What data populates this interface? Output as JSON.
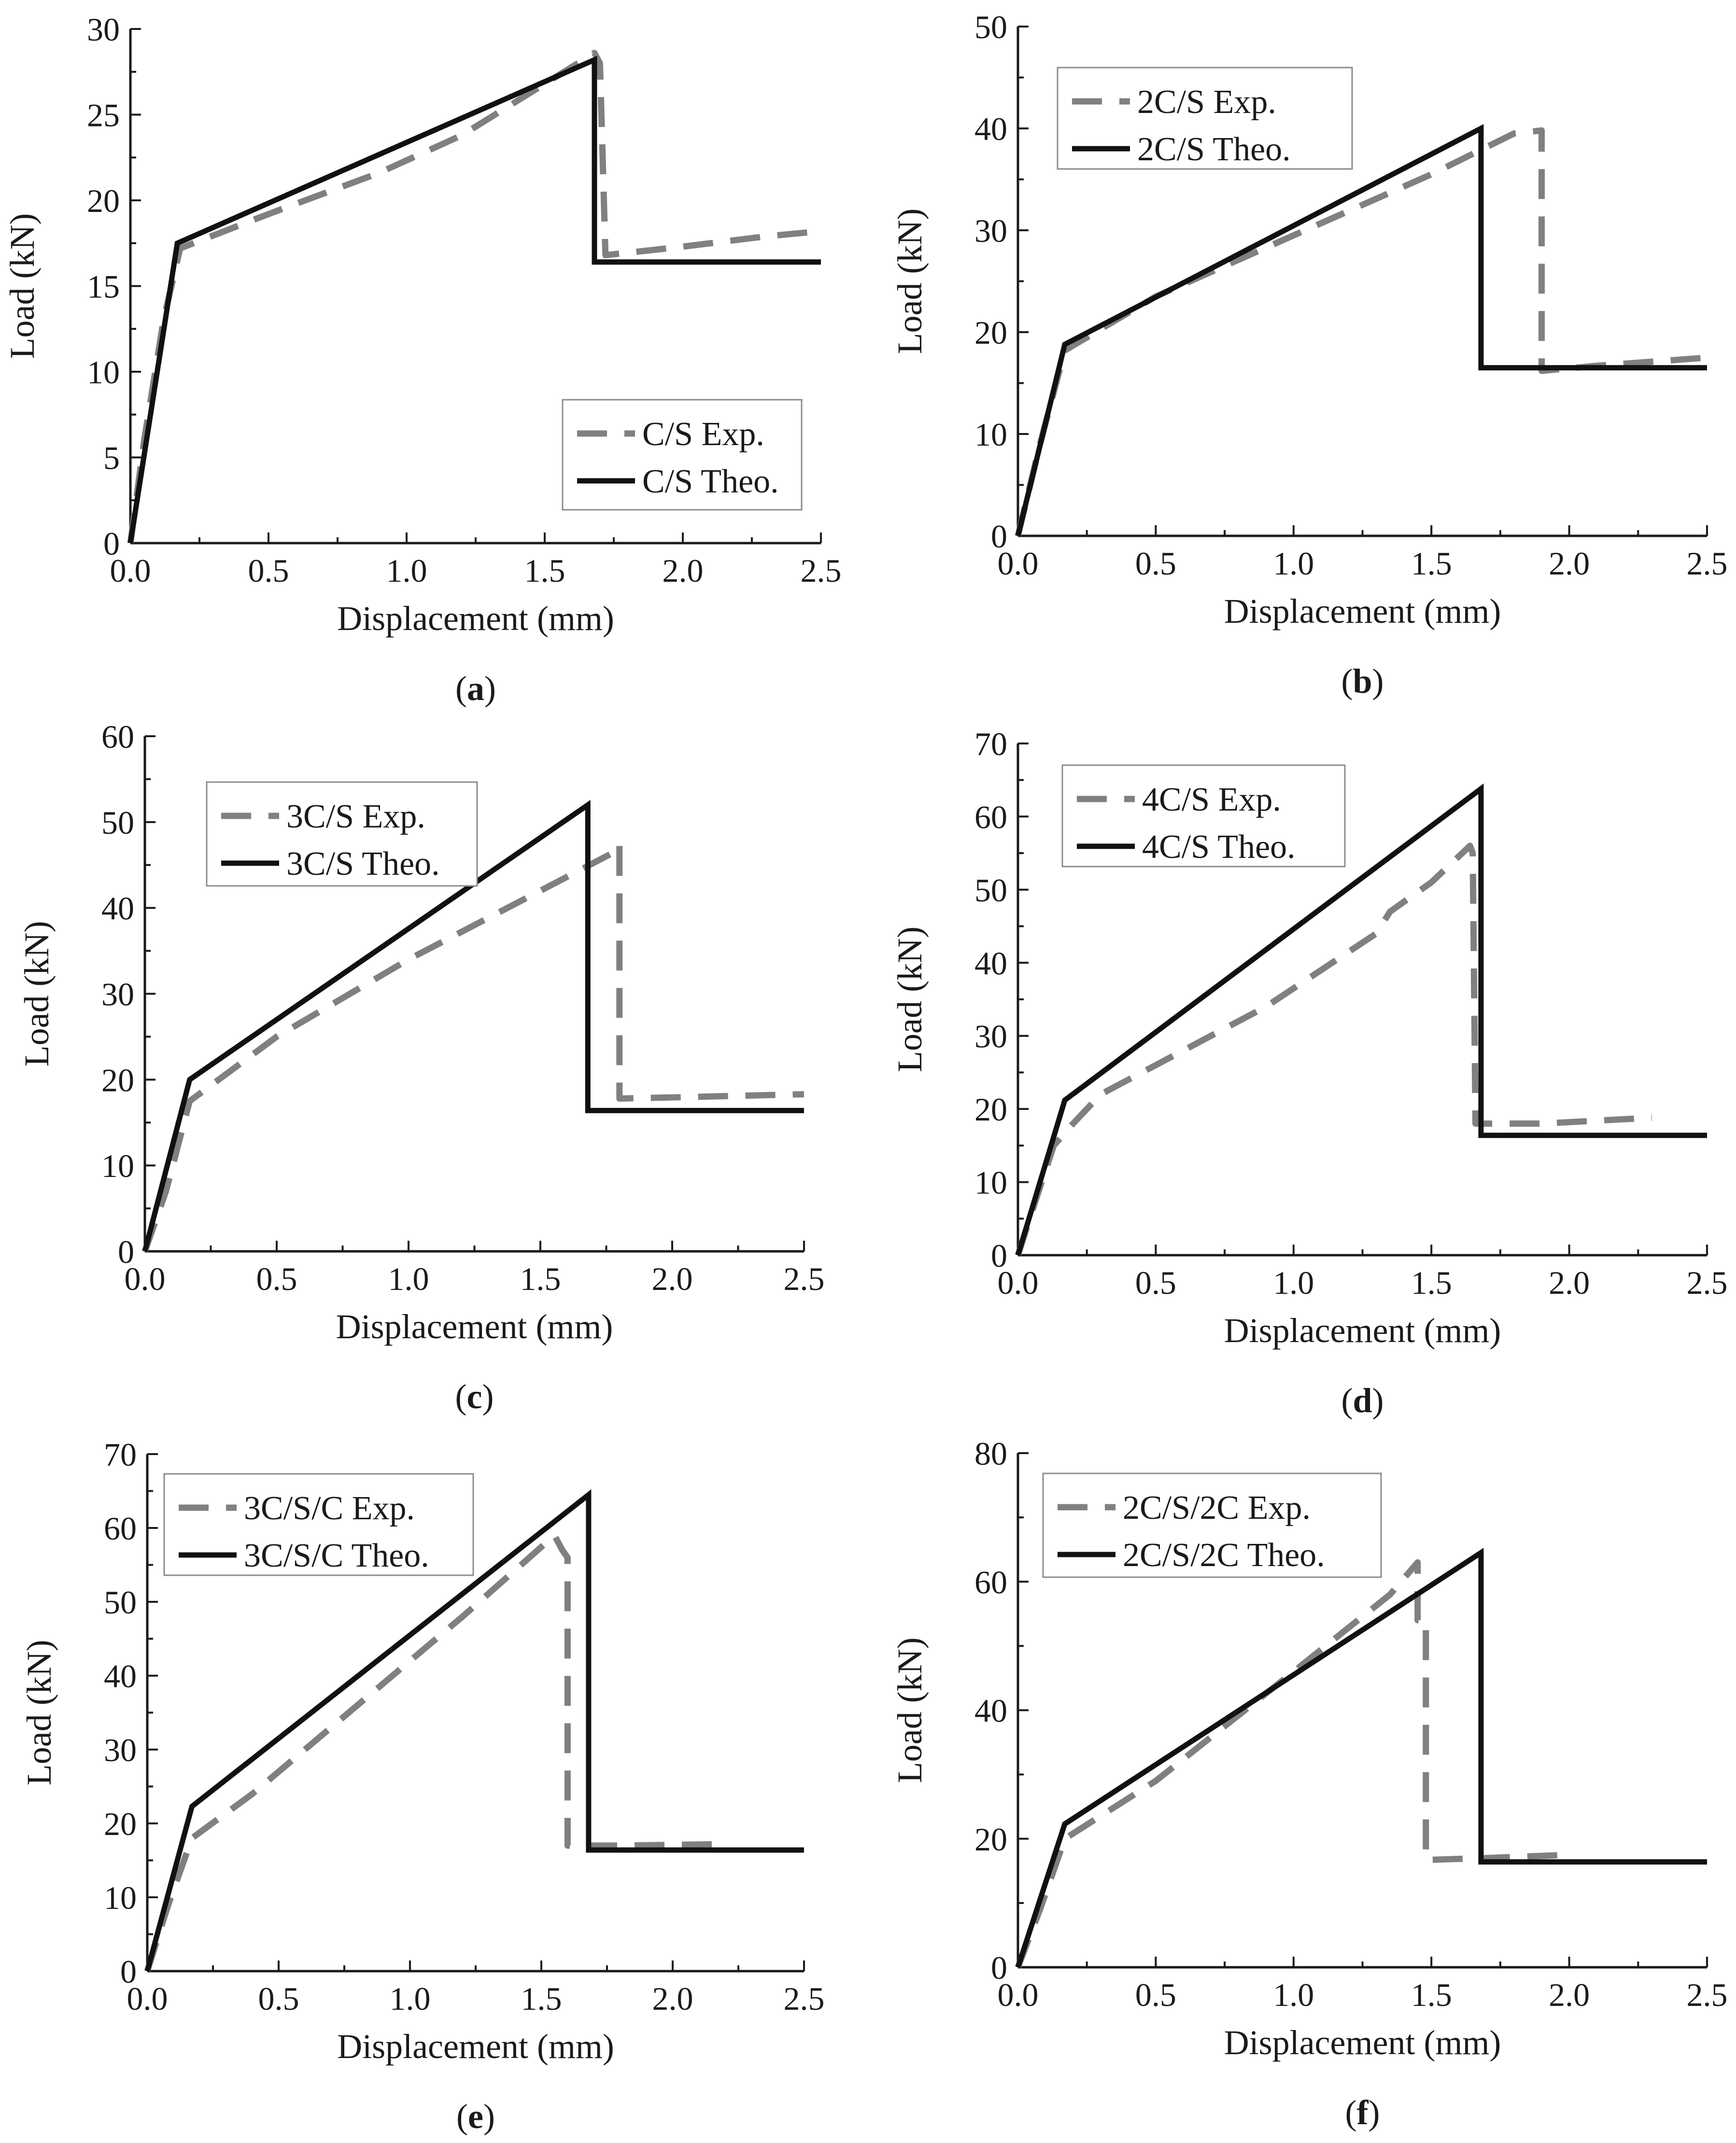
{
  "chart_data": [
    {
      "type": "line",
      "panel": "a",
      "caption": "a",
      "xlabel": "Displacement (mm)",
      "ylabel": "Load (kN)",
      "xlim": [
        0,
        2.5
      ],
      "ylim": [
        0,
        30
      ],
      "xticks": [
        "0.0",
        "0.5",
        "1.0",
        "1.5",
        "2.0",
        "2.5"
      ],
      "yticks": [
        "0",
        "5",
        "10",
        "15",
        "20",
        "25",
        "30"
      ],
      "legend_position": "bottom-right",
      "series": [
        {
          "name": "C/S Exp.",
          "style": "dashed",
          "x": [
            0,
            0.05,
            0.12,
            0.18,
            0.5,
            0.9,
            1.2,
            1.5,
            1.68,
            1.7,
            1.72,
            2.0,
            2.3,
            2.5
          ],
          "y": [
            0,
            6,
            13,
            17.2,
            19.2,
            21.6,
            23.8,
            26.8,
            28.6,
            28.0,
            16.8,
            17.3,
            17.9,
            18.2
          ]
        },
        {
          "name": "C/S Theo.",
          "style": "solid",
          "x": [
            0,
            0.17,
            1.68,
            1.68,
            2.5
          ],
          "y": [
            0,
            17.5,
            28.2,
            16.4,
            16.4
          ]
        }
      ]
    },
    {
      "type": "line",
      "panel": "b",
      "caption": "b",
      "xlabel": "Displacement (mm)",
      "ylabel": "Load (kN)",
      "xlim": [
        0,
        2.5
      ],
      "ylim": [
        0,
        50
      ],
      "xticks": [
        "0.0",
        "0.5",
        "1.0",
        "1.5",
        "2.0",
        "2.5"
      ],
      "yticks": [
        "0",
        "10",
        "20",
        "30",
        "40",
        "50"
      ],
      "legend_position": "top-left",
      "series": [
        {
          "name": "2C/S Exp.",
          "style": "dashed",
          "x": [
            0,
            0.08,
            0.17,
            0.5,
            1.0,
            1.5,
            1.8,
            1.9,
            1.9,
            2.1,
            2.5
          ],
          "y": [
            0,
            9,
            18.2,
            23.5,
            29.5,
            35.5,
            39.5,
            39.8,
            16.2,
            16.7,
            17.5
          ]
        },
        {
          "name": "2C/S Theo.",
          "style": "solid",
          "x": [
            0,
            0.17,
            1.68,
            1.68,
            2.5
          ],
          "y": [
            0,
            18.8,
            40,
            16.5,
            16.5
          ]
        }
      ]
    },
    {
      "type": "line",
      "panel": "c",
      "caption": "c",
      "xlabel": "Displacement (mm)",
      "ylabel": "Load (kN)",
      "xlim": [
        0,
        2.5
      ],
      "ylim": [
        0,
        60
      ],
      "xticks": [
        "0.0",
        "0.5",
        "1.0",
        "1.5",
        "2.0",
        "2.5"
      ],
      "yticks": [
        "0",
        "10",
        "20",
        "30",
        "40",
        "50",
        "60"
      ],
      "legend_position": "top-left",
      "series": [
        {
          "name": "3C/S Exp.",
          "style": "dashed",
          "x": [
            0,
            0.08,
            0.17,
            0.5,
            1.0,
            1.5,
            1.78,
            1.8,
            1.8,
            2.1,
            2.5
          ],
          "y": [
            0,
            7,
            17.5,
            25,
            34,
            42,
            46.5,
            47.5,
            17.8,
            18,
            18.3
          ]
        },
        {
          "name": "3C/S Theo.",
          "style": "solid",
          "x": [
            0,
            0.17,
            1.68,
            1.68,
            2.5
          ],
          "y": [
            0,
            20,
            52,
            16.4,
            16.4
          ]
        }
      ]
    },
    {
      "type": "line",
      "panel": "d",
      "caption": "d",
      "xlabel": "Displacement (mm)",
      "ylabel": "Load (kN)",
      "xlim": [
        0,
        2.5
      ],
      "ylim": [
        0,
        70
      ],
      "xticks": [
        "0.0",
        "0.5",
        "1.0",
        "1.5",
        "2.0",
        "2.5"
      ],
      "yticks": [
        "0",
        "10",
        "20",
        "30",
        "40",
        "50",
        "60",
        "70"
      ],
      "legend_position": "top-left",
      "series": [
        {
          "name": "4C/S Exp.",
          "style": "dashed",
          "x": [
            0,
            0.06,
            0.13,
            0.2,
            0.3,
            0.6,
            0.9,
            1.3,
            1.35,
            1.5,
            1.64,
            1.65,
            1.66,
            1.9,
            2.3
          ],
          "y": [
            0,
            7,
            15,
            18,
            22,
            28,
            34,
            44,
            47,
            51,
            56,
            55,
            18,
            18,
            18.8
          ]
        },
        {
          "name": "4C/S Theo.",
          "style": "solid",
          "x": [
            0,
            0.17,
            1.68,
            1.68,
            2.5
          ],
          "y": [
            0,
            21.2,
            63.8,
            16.4,
            16.4
          ]
        }
      ]
    },
    {
      "type": "line",
      "panel": "e",
      "caption": "e",
      "xlabel": "Displacement (mm)",
      "ylabel": "Load (kN)",
      "xlim": [
        0,
        2.5
      ],
      "ylim": [
        0,
        70
      ],
      "xticks": [
        "0.0",
        "0.5",
        "1.0",
        "1.5",
        "2.0",
        "2.5"
      ],
      "yticks": [
        "0",
        "10",
        "20",
        "30",
        "40",
        "50",
        "60",
        "70"
      ],
      "legend_position": "top-left",
      "series": [
        {
          "name": "3C/S/C Exp.",
          "style": "dashed",
          "x": [
            0,
            0.08,
            0.17,
            0.4,
            0.8,
            1.2,
            1.55,
            1.58,
            1.6,
            1.6,
            1.8,
            2.2
          ],
          "y": [
            0,
            9,
            18,
            24,
            36,
            48,
            59,
            57,
            56,
            17,
            17,
            17.2
          ]
        },
        {
          "name": "3C/S/C Theo.",
          "style": "solid",
          "x": [
            0,
            0.17,
            1.68,
            1.68,
            2.5
          ],
          "y": [
            0,
            22.3,
            64.5,
            16.4,
            16.4
          ]
        }
      ]
    },
    {
      "type": "line",
      "panel": "f",
      "caption": "f",
      "xlabel": "Displacement (mm)",
      "ylabel": "Load (kN)",
      "xlim": [
        0,
        2.5
      ],
      "ylim": [
        0,
        80
      ],
      "xticks": [
        "0.0",
        "0.5",
        "1.0",
        "1.5",
        "2.0",
        "2.5"
      ],
      "yticks": [
        "0",
        "20",
        "40",
        "60",
        "80"
      ],
      "legend_position": "top-left",
      "series": [
        {
          "name": "2C/S/2C Exp.",
          "style": "dashed",
          "x": [
            0,
            0.08,
            0.17,
            0.5,
            1.0,
            1.35,
            1.45,
            1.45,
            1.48,
            1.48,
            1.7,
            2.0
          ],
          "y": [
            0,
            9,
            20,
            29,
            46,
            58,
            63,
            54,
            54,
            16.7,
            17,
            17.5
          ]
        },
        {
          "name": "2C/S/2C Theo.",
          "style": "solid",
          "x": [
            0,
            0.17,
            1.68,
            1.68,
            2.5
          ],
          "y": [
            0,
            22.3,
            64.5,
            16.4,
            16.4
          ]
        }
      ]
    }
  ]
}
